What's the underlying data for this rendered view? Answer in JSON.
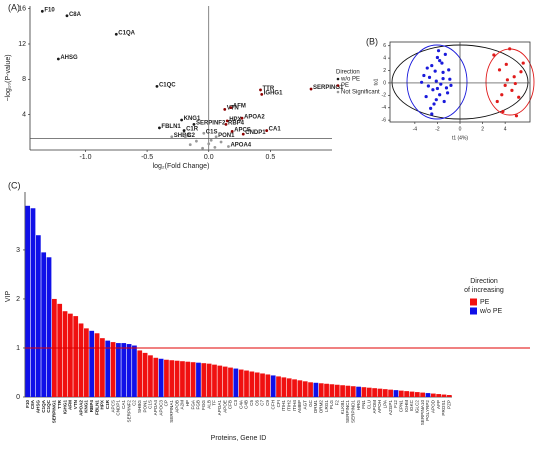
{
  "chart_data": [
    {
      "type": "scatter",
      "label": "(A)",
      "xlabel": "log₂(Fold Change)",
      "ylabel": "−log₁₀(P-value)",
      "xlim": [
        -1.45,
        1.0
      ],
      "ylim": [
        0,
        16.3
      ],
      "xticks": [
        {
          "value": -1,
          "label": "-1.0"
        },
        {
          "value": -0.5,
          "label": "-0.5"
        },
        {
          "value": 0,
          "label": "0.0"
        },
        {
          "value": 0.5,
          "label": "0.5"
        }
      ],
      "yticks": [
        4,
        8,
        12,
        16
      ],
      "hlines": [
        1.3
      ],
      "vlines": [
        0
      ],
      "legend_title": "Direction",
      "series": [
        {
          "name": "w/o PE",
          "color": "#1a1a1a",
          "x": [
            -1.35,
            -1.15,
            -1.22,
            -0.75,
            -0.42,
            -0.22,
            -0.4,
            -0.2,
            -0.12
          ],
          "values": [
            15.7,
            15.2,
            10.3,
            13.1,
            7.2,
            3.4,
            2.5,
            2.2,
            2.9
          ],
          "labels": [
            "F10",
            "C8A",
            "AHSG",
            "C1QA",
            "C1QC",
            "KNG1",
            "FBLN1",
            "C1R",
            "SERPINF2"
          ]
        },
        {
          "name": "PE",
          "color": "#8b0000",
          "x": [
            0.42,
            0.43,
            0.83,
            0.13,
            0.18,
            0.27,
            0.15,
            0.14,
            0.19,
            0.28,
            0.47
          ],
          "values": [
            6.8,
            6.3,
            6.9,
            4.6,
            4.8,
            3.6,
            3.3,
            2.9,
            2.1,
            1.8,
            2.2
          ],
          "labels": [
            "TTR",
            "IGHG1",
            "SERPING1",
            "VTN",
            "AFM",
            "APOA2",
            "HPX",
            "RBP4",
            "APCS",
            "CNDP1",
            "CA1"
          ]
        },
        {
          "name": "Not Significant",
          "color": "#999999",
          "x": [
            -0.3,
            -0.19,
            -0.04,
            0.06,
            0.16,
            -0.1,
            0.0,
            0.05,
            -0.05,
            0.1,
            -0.15,
            0.02
          ],
          "values": [
            1.5,
            1.5,
            1.9,
            1.5,
            0.4,
            1.0,
            0.7,
            0.3,
            0.2,
            0.9,
            0.6,
            1.1
          ],
          "labels": [
            "SHBG",
            "C2",
            "C1S",
            "PON1",
            "APOA4",
            null,
            null,
            null,
            null,
            null,
            null,
            null
          ]
        }
      ]
    },
    {
      "type": "scatter",
      "label": "(B)",
      "xlabel": "t1 (4%)",
      "ylabel": "to1",
      "xlim": [
        -6.2,
        6.2
      ],
      "ylim": [
        -6.3,
        6.6
      ],
      "xticks": [
        -4,
        -2,
        0,
        2,
        4
      ],
      "yticks": [
        -6,
        -4,
        -2,
        0,
        2,
        4,
        6
      ],
      "zero_lines": true,
      "frame": true,
      "series": [
        {
          "color": "#1a1adb",
          "x": [
            -3.2,
            -2.8,
            -2.5,
            -2.1,
            -1.8,
            -1.5,
            -1.2,
            -0.9,
            -2.3,
            -2.0,
            -1.6,
            -3.0,
            -2.7,
            -1.4,
            -1.0,
            -2.4,
            -1.9,
            -2.6,
            -1.7,
            -1.1,
            -3.4,
            -2.2,
            -1.3,
            -0.8,
            -2.9,
            -2.1,
            -1.5,
            -2.5,
            -1.8,
            -2.0
          ],
          "values": [
            1.2,
            -0.5,
            2.8,
            0.3,
            -1.9,
            1.7,
            -0.8,
            0.6,
            -3.4,
            4.1,
            3.2,
            -2.2,
            0.9,
            -3.0,
            2.1,
            -1.1,
            5.2,
            -4.1,
            -0.2,
            -1.6,
            0.1,
            1.9,
            4.6,
            -0.4,
            2.4,
            -2.7,
            0.7,
            -5.0,
            3.6,
            -0.9
          ]
        },
        {
          "color": "#e01b1b",
          "x": [
            3.0,
            3.5,
            4.0,
            4.4,
            4.8,
            5.2,
            5.6,
            3.8,
            4.2,
            4.6,
            5.0,
            3.3,
            4.1,
            4.9,
            5.4,
            3.7
          ],
          "values": [
            4.5,
            2.1,
            -0.4,
            5.5,
            1.0,
            -2.3,
            3.2,
            -4.6,
            0.5,
            -1.2,
            -5.3,
            -3.0,
            3.0,
            -0.1,
            1.8,
            -1.9
          ]
        }
      ]
    },
    {
      "type": "bar",
      "label": "(C)",
      "xlabel": "Proteins, Gene ID",
      "ylabel": "VIP",
      "ylim": [
        0,
        4.1
      ],
      "yticks": [
        0,
        1,
        2,
        3
      ],
      "threshold": 1,
      "threshold_color": "#e00000",
      "legend_title": [
        "Direction",
        "of increasing"
      ],
      "categories": [
        "F10",
        "C8A",
        "AHSG",
        "C1QA",
        "C1QC",
        "SERPING1",
        "TTR",
        "IGHG1",
        "AFM",
        "VTN",
        "APOA2",
        "KNG1",
        "RBP4",
        "FBLN1",
        "HPX",
        "C1R",
        "APCS",
        "CNDP1",
        "CA1",
        "SERPINF2",
        "C2",
        "SHBG",
        "PON1",
        "C1S",
        "APOA4",
        "APOC3",
        "CP",
        "SERPINA1",
        "APOB",
        "A2M",
        "HP",
        "FGA",
        "FGB",
        "FGG",
        "ALB",
        "TF",
        "APOA1",
        "APOE",
        "CFB",
        "C3",
        "C4A",
        "C4B",
        "C5",
        "C6",
        "C7",
        "C9",
        "CFH",
        "CFI",
        "ITIH1",
        "ITIH2",
        "ITIH4",
        "AMBP",
        "AGT",
        "GC",
        "ORM1",
        "ORM2",
        "LRG1",
        "PLG",
        "F2",
        "KLKB1",
        "SERPINC1",
        "SERPIND1",
        "HRG",
        "FN1",
        "CLU",
        "APOM",
        "APOH",
        "LPA",
        "AZGP1",
        "F12",
        "CPN1",
        "IGHM",
        "IGKC",
        "IGLC2",
        "SERPINA10",
        "PGLYRP2",
        "APOD",
        "AFP",
        "PROS1",
        "PZP"
      ],
      "series": [
        {
          "name": "PE",
          "color": "#f01010",
          "values": [
            null,
            null,
            null,
            null,
            null,
            2.0,
            1.9,
            1.75,
            1.7,
            1.65,
            1.5,
            1.4,
            null,
            1.3,
            1.2,
            null,
            1.12,
            null,
            null,
            null,
            null,
            0.95,
            0.9,
            0.85,
            0.8,
            null,
            0.76,
            0.75,
            0.74,
            0.73,
            0.72,
            0.71,
            null,
            0.69,
            0.68,
            0.66,
            0.64,
            0.62,
            0.6,
            null,
            0.56,
            0.54,
            0.52,
            0.5,
            0.48,
            0.46,
            null,
            0.42,
            0.4,
            0.38,
            0.36,
            0.34,
            0.32,
            0.3,
            null,
            0.28,
            0.27,
            0.26,
            0.25,
            0.24,
            0.23,
            0.22,
            null,
            0.2,
            0.19,
            0.18,
            0.17,
            0.16,
            0.15,
            null,
            0.13,
            0.12,
            0.11,
            0.1,
            0.09,
            null,
            0.07,
            0.06,
            0.05,
            0.04
          ]
        },
        {
          "name": "w/o PE",
          "color": "#1010e8",
          "values": [
            3.9,
            3.85,
            3.3,
            2.95,
            2.85,
            null,
            null,
            null,
            null,
            null,
            null,
            null,
            1.35,
            null,
            null,
            1.15,
            null,
            1.1,
            1.1,
            1.08,
            1.05,
            null,
            null,
            null,
            null,
            0.78,
            null,
            null,
            null,
            null,
            null,
            null,
            0.7,
            null,
            null,
            null,
            null,
            null,
            null,
            0.58,
            null,
            null,
            null,
            null,
            null,
            null,
            0.44,
            null,
            null,
            null,
            null,
            null,
            null,
            null,
            0.29,
            null,
            null,
            null,
            null,
            null,
            null,
            null,
            0.21,
            null,
            null,
            null,
            null,
            null,
            null,
            0.14,
            null,
            null,
            null,
            null,
            null,
            0.08,
            null,
            null,
            null,
            null
          ]
        }
      ]
    }
  ]
}
